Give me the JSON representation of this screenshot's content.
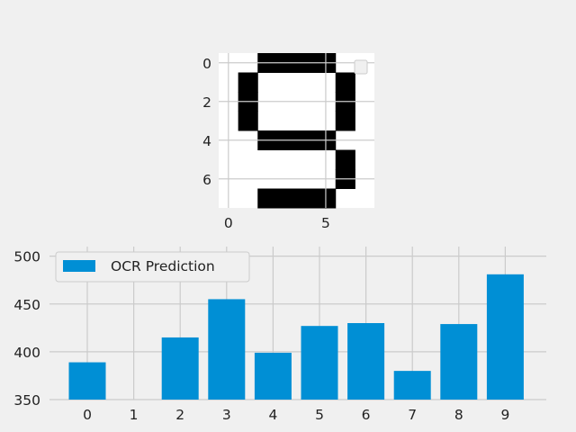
{
  "chart_data": [
    {
      "type": "heatmap",
      "colormap": "binary",
      "grid": true,
      "legend": "top-right (empty)",
      "xticks": [
        0,
        5
      ],
      "yticks": [
        0,
        2,
        4,
        6
      ],
      "matrix": [
        [
          0,
          0,
          1,
          1,
          1,
          1,
          0,
          0
        ],
        [
          0,
          1,
          0,
          0,
          0,
          0,
          1,
          0
        ],
        [
          0,
          1,
          0,
          0,
          0,
          0,
          1,
          0
        ],
        [
          0,
          1,
          0,
          0,
          0,
          0,
          1,
          0
        ],
        [
          0,
          0,
          1,
          1,
          1,
          1,
          0,
          0
        ],
        [
          0,
          0,
          0,
          0,
          0,
          0,
          1,
          0
        ],
        [
          0,
          0,
          0,
          0,
          0,
          0,
          1,
          0
        ],
        [
          0,
          0,
          1,
          1,
          1,
          1,
          0,
          0
        ]
      ]
    },
    {
      "type": "bar",
      "categories": [
        "0",
        "1",
        "2",
        "3",
        "4",
        "5",
        "6",
        "7",
        "8",
        "9"
      ],
      "series": [
        {
          "name": "OCR Prediction",
          "values": [
            389,
            350,
            415,
            455,
            399,
            427,
            430,
            380,
            429,
            481
          ]
        }
      ],
      "yticks": [
        350,
        400,
        450,
        500
      ],
      "ylim": [
        350,
        510
      ],
      "bar_color": "#008fd5",
      "grid": true,
      "legend": "top-left"
    }
  ]
}
